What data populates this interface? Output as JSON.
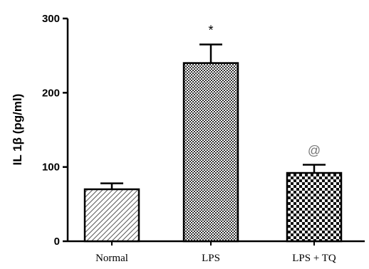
{
  "chart_data": {
    "type": "bar",
    "categories": [
      "Normal",
      "LPS",
      "LPS + TQ"
    ],
    "values": [
      70,
      240,
      92
    ],
    "errors": [
      8,
      25,
      11
    ],
    "annotations": [
      "",
      "*",
      "@"
    ],
    "ylabel": "IL 1β (pg/ml)",
    "xlabel": "",
    "title": "",
    "ylim": [
      0,
      300
    ],
    "yticks": [
      0,
      100,
      200,
      300
    ],
    "grid": false,
    "patterns": [
      "diagonal-hatch",
      "fine-checker",
      "coarse-checker"
    ]
  }
}
